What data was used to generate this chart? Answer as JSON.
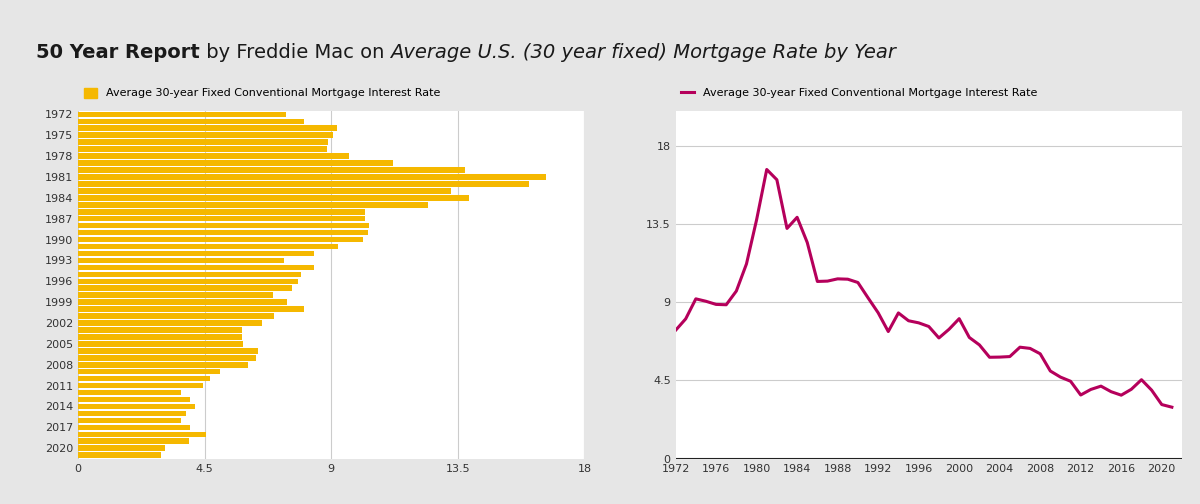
{
  "background_color": "#e6e6e6",
  "chart_bg": "#ffffff",
  "bar_color": "#f5b800",
  "line_color": "#b5005b",
  "years": [
    1972,
    1973,
    1974,
    1975,
    1976,
    1977,
    1978,
    1979,
    1980,
    1981,
    1982,
    1983,
    1984,
    1985,
    1986,
    1987,
    1988,
    1989,
    1990,
    1991,
    1992,
    1993,
    1994,
    1995,
    1996,
    1997,
    1998,
    1999,
    2000,
    2001,
    2002,
    2003,
    2004,
    2005,
    2006,
    2007,
    2008,
    2009,
    2010,
    2011,
    2012,
    2013,
    2014,
    2015,
    2016,
    2017,
    2018,
    2019,
    2020,
    2021
  ],
  "rates": [
    7.38,
    8.04,
    9.19,
    9.05,
    8.87,
    8.85,
    9.64,
    11.2,
    13.74,
    16.63,
    16.04,
    13.24,
    13.88,
    12.43,
    10.19,
    10.21,
    10.34,
    10.32,
    10.13,
    9.25,
    8.39,
    7.31,
    8.38,
    7.93,
    7.81,
    7.6,
    6.94,
    7.44,
    8.05,
    6.97,
    6.54,
    5.83,
    5.84,
    5.87,
    6.41,
    6.34,
    6.03,
    5.04,
    4.69,
    4.45,
    3.66,
    3.98,
    4.17,
    3.85,
    3.65,
    3.99,
    4.54,
    3.94,
    3.11,
    2.96
  ],
  "bar_ytick_labels": [
    "1972",
    "1975",
    "1978",
    "1981",
    "1984",
    "1987",
    "1990",
    "1993",
    "1996",
    "1999",
    "2002",
    "2005",
    "2008",
    "2011",
    "2014",
    "2017",
    "2020"
  ],
  "bar_ytick_years": [
    1972,
    1975,
    1978,
    1981,
    1984,
    1987,
    1990,
    1993,
    1996,
    1999,
    2002,
    2005,
    2008,
    2011,
    2014,
    2017,
    2020
  ],
  "bar_xlim": [
    0,
    18
  ],
  "bar_xticks": [
    0,
    4.5,
    9,
    13.5,
    18
  ],
  "line_xlim": [
    1972,
    2022
  ],
  "line_xticks": [
    1972,
    1976,
    1980,
    1984,
    1988,
    1992,
    1996,
    2000,
    2004,
    2008,
    2012,
    2016,
    2020
  ],
  "line_ylim": [
    0,
    20
  ],
  "line_yticks": [
    0,
    4.5,
    9,
    13.5,
    18
  ],
  "grid_color": "#cccccc",
  "legend_bar_label": "Average 30-year Fixed Conventional Mortgage Interest Rate",
  "legend_line_label": "Average 30-year Fixed Conventional Mortgage Interest Rate",
  "title_bold": "50 Year Report",
  "title_normal": " by Freddie Mac on ",
  "title_italic": "Average U.S. (30 year fixed) Mortgage Rate by Year"
}
